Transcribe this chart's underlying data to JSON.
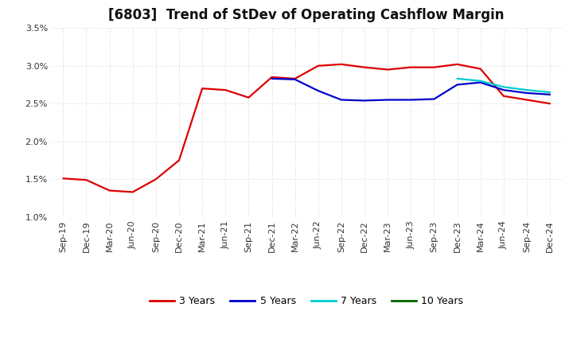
{
  "title": "[6803]  Trend of StDev of Operating Cashflow Margin",
  "ylim": [
    0.01,
    0.035
  ],
  "yticks": [
    0.01,
    0.015,
    0.02,
    0.025,
    0.03,
    0.035
  ],
  "ytick_labels": [
    "1.0%",
    "1.5%",
    "2.0%",
    "2.5%",
    "3.0%",
    "3.5%"
  ],
  "x_labels": [
    "Sep-19",
    "Dec-19",
    "Mar-20",
    "Jun-20",
    "Sep-20",
    "Dec-20",
    "Mar-21",
    "Jun-21",
    "Sep-21",
    "Dec-21",
    "Mar-22",
    "Jun-22",
    "Sep-22",
    "Dec-22",
    "Mar-23",
    "Jun-23",
    "Sep-23",
    "Dec-23",
    "Mar-24",
    "Jun-24",
    "Sep-24",
    "Dec-24"
  ],
  "line_3yr": [
    0.0151,
    0.0149,
    0.0135,
    0.0133,
    0.015,
    0.0175,
    0.027,
    0.0268,
    0.0258,
    0.0285,
    0.0283,
    0.03,
    0.0302,
    0.0298,
    0.0295,
    0.0298,
    0.0298,
    0.0302,
    0.0296,
    0.026,
    0.0255,
    0.025
  ],
  "line_5yr": [
    null,
    null,
    null,
    null,
    null,
    null,
    null,
    null,
    null,
    0.0283,
    0.0282,
    0.0267,
    0.0255,
    0.0254,
    0.0255,
    0.0255,
    0.0256,
    0.0275,
    0.0278,
    0.0268,
    0.0264,
    0.0262
  ],
  "line_7yr": [
    null,
    null,
    null,
    null,
    null,
    null,
    null,
    null,
    null,
    null,
    null,
    null,
    null,
    null,
    null,
    null,
    null,
    0.0283,
    0.028,
    0.0272,
    0.0268,
    0.0265
  ],
  "line_10yr": [
    null,
    null,
    null,
    null,
    null,
    null,
    null,
    null,
    null,
    null,
    null,
    null,
    null,
    null,
    null,
    null,
    null,
    null,
    null,
    null,
    null,
    null
  ],
  "color_3yr": "#dd0000",
  "color_5yr": "#0000cc",
  "color_7yr": "#00cccc",
  "color_10yr": "#006600",
  "background_color": "#ffffff",
  "grid_color": "#aaaaaa",
  "title_fontsize": 12,
  "tick_fontsize": 8,
  "legend_fontsize": 9
}
